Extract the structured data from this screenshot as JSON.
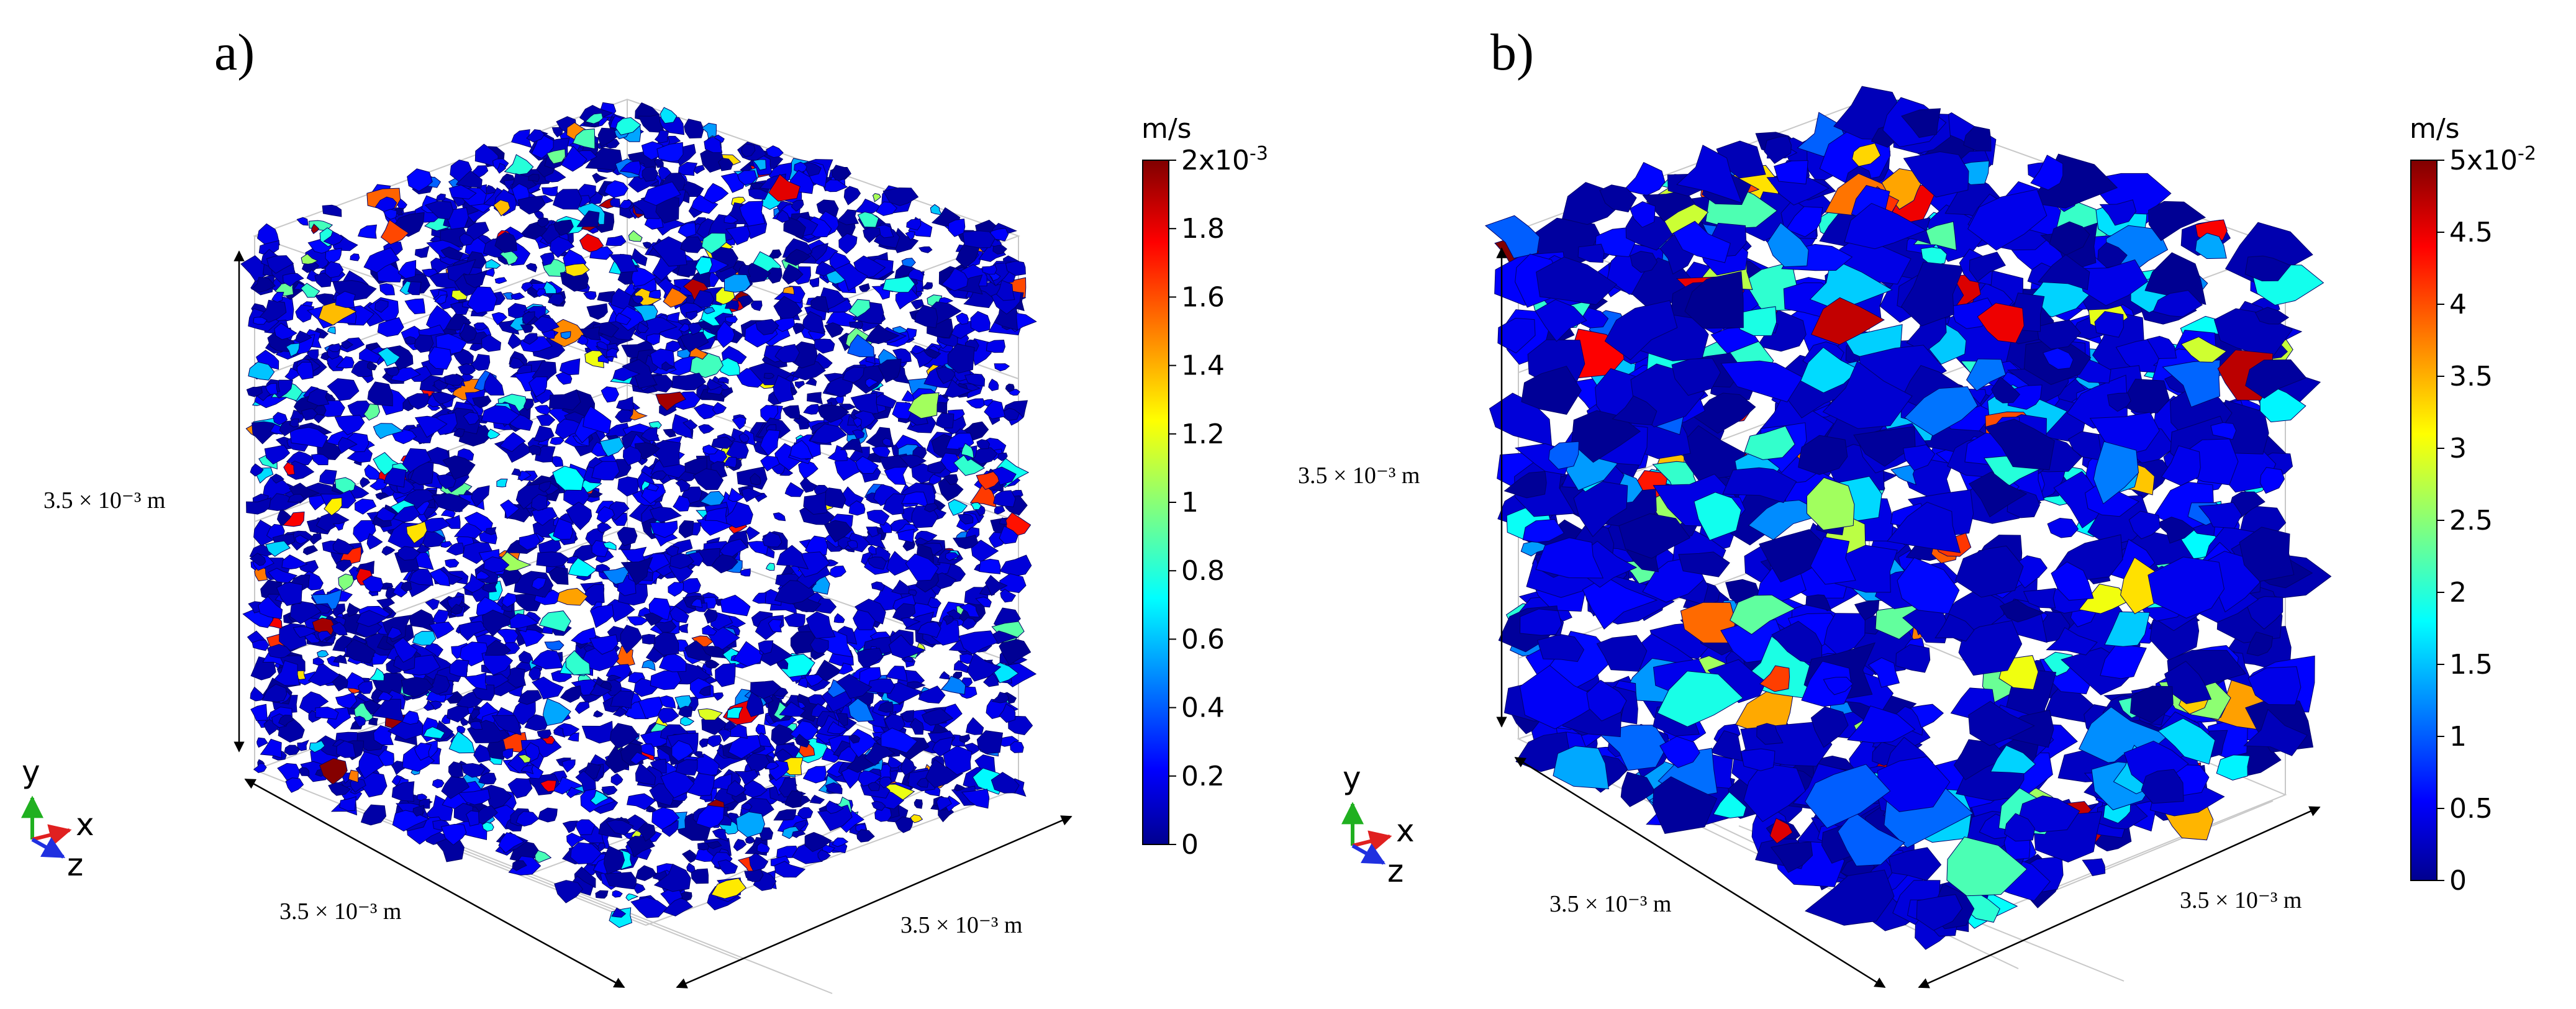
{
  "panels": [
    {
      "id": "a",
      "letter": "a)",
      "colorbar": {
        "unit": "m/s",
        "tick_labels": [
          "2x10-3",
          "1.8",
          "1.6",
          "1.4",
          "1.2",
          "1",
          "0.8",
          "0.6",
          "0.4",
          "0.2",
          "0"
        ],
        "max_mantissa": "2x10",
        "max_exponent": "-3",
        "range": [
          0,
          0.002
        ]
      },
      "dimension_labels": {
        "vertical": "3.5 × 10⁻³ m",
        "front_left": "3.5 × 10⁻³ m",
        "front_right": "3.5 × 10⁻³ m"
      },
      "axis_triad": {
        "y": "y",
        "x": "x",
        "z": "z"
      },
      "blob_density": "fine"
    },
    {
      "id": "b",
      "letter": "b)",
      "colorbar": {
        "unit": "m/s",
        "tick_labels": [
          "5x10-2",
          "4.5",
          "4",
          "3.5",
          "3",
          "2.5",
          "2",
          "1.5",
          "1",
          "0.5",
          "0"
        ],
        "max_mantissa": "5x10",
        "max_exponent": "-2",
        "range": [
          0,
          0.05
        ]
      },
      "dimension_labels": {
        "vertical": "3.5 × 10⁻³ m",
        "front_left": "3.5 × 10⁻³ m",
        "front_right": "3.5 × 10⁻³ m"
      },
      "axis_triad": {
        "y": "y",
        "x": "x",
        "z": "z"
      },
      "blob_density": "coarse"
    }
  ],
  "colors": {
    "jet_low": "#00008f",
    "jet_blue": "#0000ff",
    "jet_cyan": "#00ffff",
    "jet_yellow": "#ffff00",
    "jet_red": "#ff0000",
    "jet_high": "#800000",
    "axis_x": "#e02020",
    "axis_y": "#20b020",
    "axis_z": "#2030e0"
  }
}
